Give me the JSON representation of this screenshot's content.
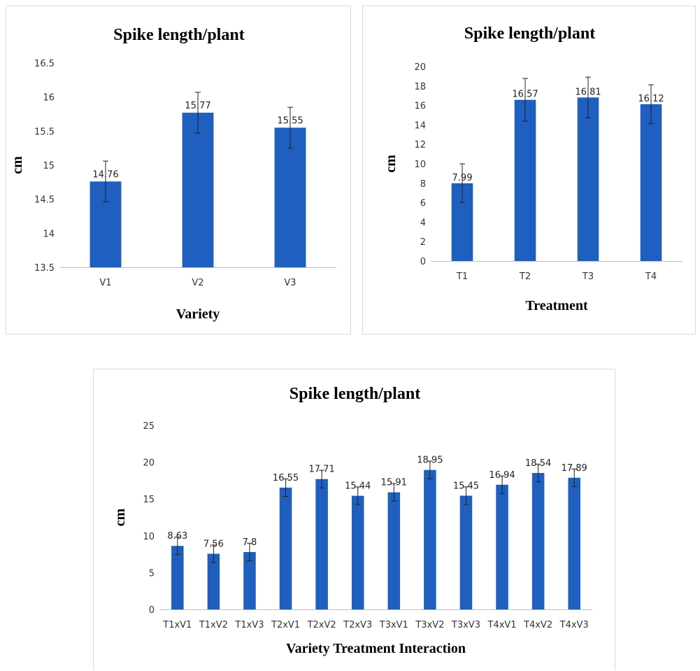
{
  "bar_color": "#1f5fbf",
  "chart_data": [
    {
      "type": "bar",
      "title": "Spike length/plant",
      "xlabel": "Variety",
      "ylabel": "cm",
      "categories": [
        "V1",
        "V2",
        "V3"
      ],
      "values": [
        14.76,
        15.77,
        15.55
      ],
      "data_labels": [
        "14.76",
        "15.77",
        "15.55"
      ],
      "error": [
        0.3,
        0.3,
        0.3
      ],
      "ylim": [
        13.5,
        16.5
      ],
      "yticks": [
        13.5,
        14,
        14.5,
        15,
        15.5,
        16,
        16.5
      ],
      "ytick_labels": [
        "13.5",
        "14",
        "14.5",
        "15",
        "15.5",
        "16",
        "16.5"
      ],
      "grid": false,
      "legend": "none"
    },
    {
      "type": "bar",
      "title": "Spike length/plant",
      "xlabel": "Treatment",
      "ylabel": "cm",
      "categories": [
        "T1",
        "T2",
        "T3",
        "T4"
      ],
      "values": [
        7.99,
        16.57,
        16.81,
        16.12
      ],
      "data_labels": [
        "7.99",
        "16.57",
        "16.81",
        "16.12"
      ],
      "error": [
        2.0,
        2.2,
        2.1,
        2.0
      ],
      "ylim": [
        0,
        20
      ],
      "yticks": [
        0,
        2,
        4,
        6,
        8,
        10,
        12,
        14,
        16,
        18,
        20
      ],
      "ytick_labels": [
        "0",
        "2",
        "4",
        "6",
        "8",
        "10",
        "12",
        "14",
        "16",
        "18",
        "20"
      ],
      "grid": false,
      "legend": "none"
    },
    {
      "type": "bar",
      "title": "Spike length/plant",
      "xlabel": "Variety Treatment Interaction",
      "ylabel": "cm",
      "categories": [
        "T1xV1",
        "T1xV2",
        "T1xV3",
        "T2xV1",
        "T2xV2",
        "T2xV3",
        "T3xV1",
        "T3xV2",
        "T3xV3",
        "T4xV1",
        "T4xV2",
        "T4xV3"
      ],
      "values": [
        8.63,
        7.56,
        7.8,
        16.55,
        17.71,
        15.44,
        15.91,
        18.95,
        15.45,
        16.94,
        18.54,
        17.89
      ],
      "data_labels": [
        "8.63",
        "7.56",
        "7.8",
        "16.55",
        "17.71",
        "15.44",
        "15.91",
        "18.95",
        "15.45",
        "16.94",
        "18.54",
        "17.89"
      ],
      "error": [
        1.2,
        1.2,
        1.2,
        1.2,
        1.2,
        1.2,
        1.2,
        1.2,
        1.2,
        1.2,
        1.2,
        1.2
      ],
      "ylim": [
        0,
        25
      ],
      "yticks": [
        0,
        5,
        10,
        15,
        20,
        25
      ],
      "ytick_labels": [
        "0",
        "5",
        "10",
        "15",
        "20",
        "25"
      ],
      "grid": false,
      "legend": "none"
    }
  ]
}
